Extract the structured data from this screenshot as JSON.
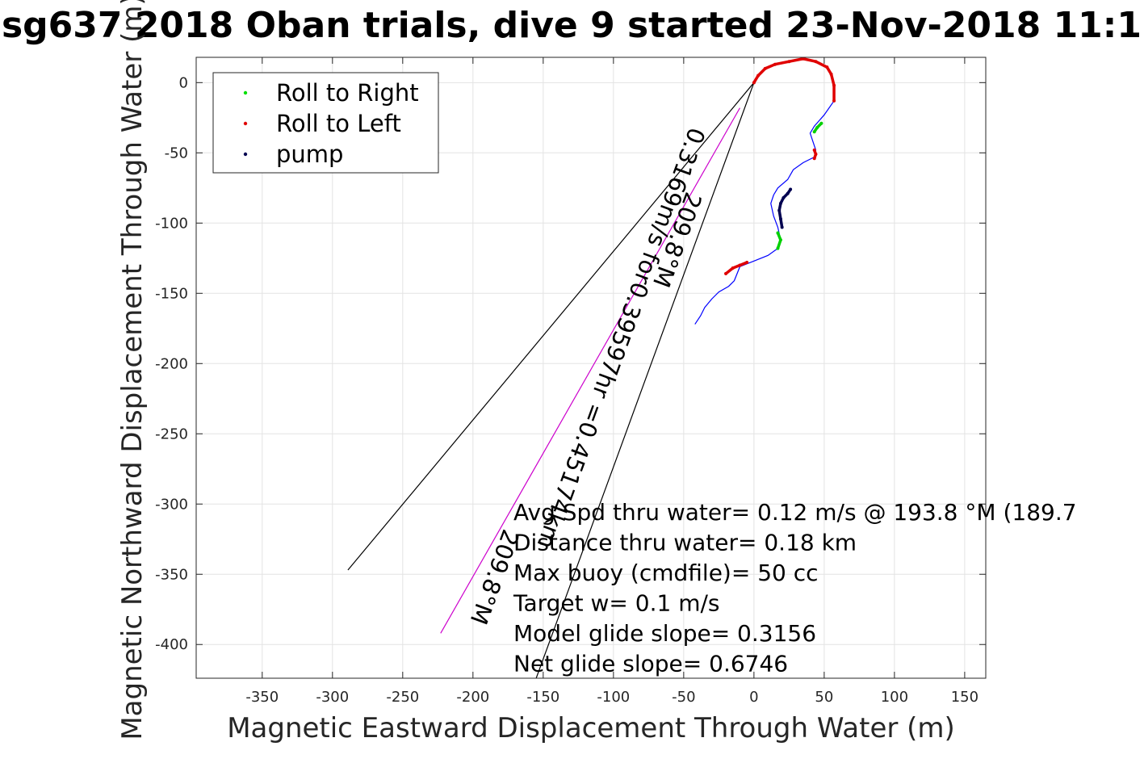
{
  "chart_data": {
    "type": "line",
    "title": "sg637 2018 Oban trials, dive 9 started 23-Nov-2018 11:1",
    "xlabel": "Magnetic Eastward Displacement Through Water (m)",
    "ylabel": "Magnetic Northward Displacement Through Water (m)",
    "xlim": [
      -397,
      165
    ],
    "ylim": [
      -424,
      18
    ],
    "xticks": [
      -350,
      -300,
      -250,
      -200,
      -150,
      -100,
      -50,
      0,
      50,
      100,
      150
    ],
    "yticks": [
      0,
      -50,
      -100,
      -150,
      -200,
      -250,
      -300,
      -350,
      -400
    ],
    "grid": true,
    "legend": {
      "placement": "top-left",
      "entries": [
        {
          "label": "Roll to Right",
          "color": "#00e000"
        },
        {
          "label": "Roll to Left",
          "color": "#e00000"
        },
        {
          "label": "pump",
          "color": "#000050"
        }
      ]
    },
    "series": [
      {
        "role": "track",
        "color": "#0000ff",
        "x": [
          -42,
          -38,
          -35,
          -30,
          -25,
          -18,
          -14,
          -10,
          0,
          10,
          17,
          19,
          17,
          14,
          12,
          14,
          17,
          24,
          28,
          35,
          43,
          44,
          42,
          40,
          43,
          50,
          57,
          57,
          55,
          52,
          44,
          35,
          25,
          15,
          8,
          3,
          0
        ],
        "y": [
          -172,
          -166,
          -160,
          -154,
          -149,
          -145,
          -141,
          -131,
          -127,
          -123,
          -118,
          -112,
          -103,
          -95,
          -86,
          -80,
          -75,
          -69,
          -62,
          -57,
          -53,
          -48,
          -42,
          -36,
          -31,
          -23,
          -13,
          -2,
          6,
          11,
          15,
          17,
          15,
          13,
          10,
          5,
          0
        ]
      },
      {
        "role": "roll-right",
        "color": "#00d000",
        "x": [
          17,
          19,
          17
        ],
        "y": [
          -118,
          -112,
          -107
        ]
      },
      {
        "role": "roll-right",
        "color": "#00d000",
        "x": [
          43,
          45,
          48
        ],
        "y": [
          -35,
          -32,
          -29
        ]
      },
      {
        "role": "roll-left",
        "color": "#e00000",
        "x": [
          -20,
          -15,
          -10,
          -5
        ],
        "y": [
          -136,
          -132,
          -130,
          -128
        ]
      },
      {
        "role": "roll-left",
        "color": "#e00000",
        "x": [
          43,
          44,
          43
        ],
        "y": [
          -48,
          -51,
          -54
        ]
      },
      {
        "role": "roll-left",
        "color": "#e00000",
        "x": [
          57,
          57,
          55,
          52,
          44,
          35,
          25,
          15,
          8,
          3,
          0
        ],
        "y": [
          -13,
          -2,
          6,
          11,
          15,
          17,
          15,
          13,
          10,
          5,
          0
        ]
      },
      {
        "role": "pump",
        "color": "#000050",
        "x": [
          20,
          19,
          18,
          19,
          21,
          24,
          26
        ],
        "y": [
          -103,
          -97,
          -91,
          -86,
          -82,
          -79,
          -76
        ]
      }
    ],
    "guide_lines": [
      {
        "role": "direction-line",
        "color": "#000000",
        "x": [
          0,
          -289
        ],
        "y": [
          0,
          -347
        ]
      },
      {
        "role": "direction-line",
        "color": "#000000",
        "x": [
          0,
          -155
        ],
        "y": [
          0,
          -424
        ]
      },
      {
        "role": "direction-line",
        "color": "#cc00cc",
        "x": [
          -10,
          -223
        ],
        "y": [
          -18,
          -392
        ]
      }
    ],
    "line_annotations": [
      {
        "text": "209.8°M",
        "x": -60,
        "y": -110
      },
      {
        "text": "0.3169m/s for0.39597hr =0.45174km",
        "x": -100,
        "y": -180
      },
      {
        "text": "209.8°M",
        "x": -190,
        "y": -350
      }
    ],
    "annotations": [
      "Avg Spd thru water=  0.12 m/s @ 193.8 °M (189.7",
      "Distance thru water=  0.18 km",
      "Max buoy (cmdfile)= 50 cc",
      "Target w= 0.1 m/s",
      "Model glide slope= 0.3156",
      "Net glide slope= 0.6746"
    ]
  }
}
